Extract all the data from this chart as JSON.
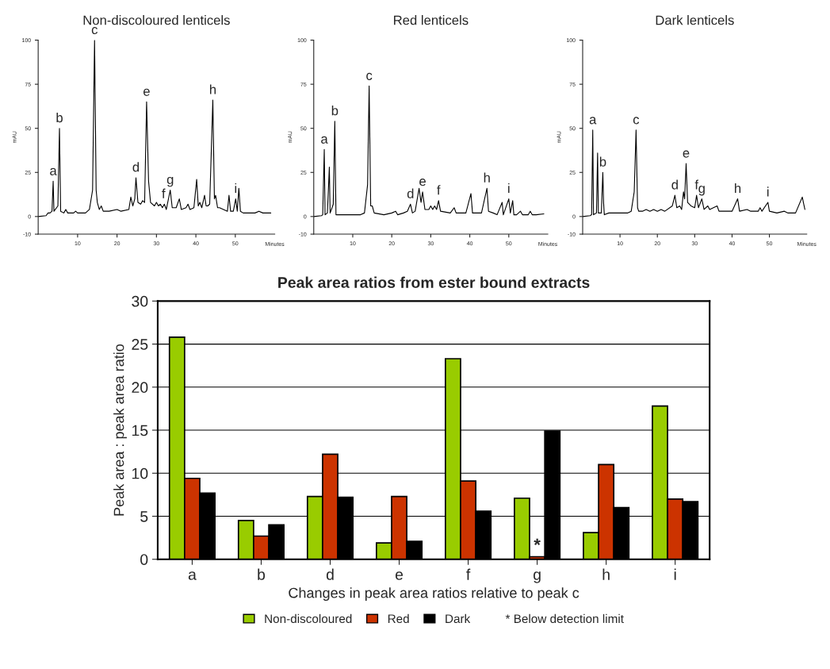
{
  "chart_data": [
    {
      "type": "line",
      "title": "Non-discoloured lenticels",
      "xlabel": "Minutes",
      "ylabel": "mAU",
      "xlim": [
        0,
        60
      ],
      "ylim": [
        -10,
        100
      ],
      "xticks": [
        10,
        20,
        30,
        40,
        50
      ],
      "yticks": [
        -10,
        0,
        25,
        50,
        75,
        100
      ],
      "grid": false,
      "marker": "none",
      "line_style": "solid",
      "series": [
        {
          "color": "#000000",
          "x": [
            0,
            2,
            2.5,
            3,
            3.5,
            3.8,
            4.0,
            5,
            5.4,
            5.7,
            6.5,
            7,
            7.5,
            9,
            9.5,
            10,
            11,
            12,
            13,
            13.8,
            14.3,
            14.7,
            15,
            15.5,
            16,
            16.5,
            18,
            20,
            21,
            23,
            23.5,
            24,
            24.5,
            24.8,
            25.3,
            26,
            26.5,
            27,
            27.5,
            28,
            28.5,
            29.5,
            30,
            30.5,
            31,
            31.5,
            32,
            32.5,
            33.5,
            34,
            35,
            35.8,
            36.3,
            37.5,
            38,
            38.5,
            39.5,
            40.2,
            40.6,
            41,
            41.5,
            42.2,
            42.6,
            43,
            43.5,
            44.3,
            44.7,
            45,
            45.5,
            46,
            47,
            48,
            48.4,
            48.8,
            49.5,
            50.1,
            50.5,
            50.9,
            51.3,
            52,
            53,
            55,
            56,
            57,
            59
          ],
          "values": [
            0,
            0.5,
            2,
            2,
            3,
            20,
            3,
            6,
            50,
            3,
            2,
            4,
            2,
            2,
            3,
            2,
            2,
            2,
            4,
            15,
            100,
            15,
            8,
            4,
            6,
            3,
            3,
            4,
            3,
            4,
            11,
            6,
            10,
            22,
            8,
            7,
            9,
            8,
            65,
            20,
            8,
            6,
            8,
            6,
            7,
            5,
            7,
            4,
            15,
            5,
            5,
            10,
            4,
            5,
            7,
            4,
            5,
            21,
            6,
            8,
            5,
            12,
            6,
            6,
            7,
            66,
            10,
            12,
            5,
            5,
            4,
            3,
            12,
            3,
            3,
            10,
            3,
            16,
            3,
            2,
            2,
            2,
            3,
            2,
            2
          ]
        }
      ],
      "annotations": [
        {
          "text": "a",
          "x": 3.8,
          "y": 20
        },
        {
          "text": "b",
          "x": 5.4,
          "y": 50
        },
        {
          "text": "c",
          "x": 14.3,
          "y": 100
        },
        {
          "text": "d",
          "x": 24.8,
          "y": 22
        },
        {
          "text": "e",
          "x": 27.5,
          "y": 65
        },
        {
          "text": "f",
          "x": 31.8,
          "y": 7
        },
        {
          "text": "g",
          "x": 33.5,
          "y": 15
        },
        {
          "text": "h",
          "x": 44.3,
          "y": 66
        },
        {
          "text": "i",
          "x": 50.1,
          "y": 10
        }
      ]
    },
    {
      "type": "line",
      "title": "Red lenticels",
      "xlabel": "Minutes",
      "ylabel": "mAU",
      "xlim": [
        0,
        60
      ],
      "ylim": [
        -10,
        100
      ],
      "xticks": [
        10,
        20,
        30,
        40,
        50
      ],
      "yticks": [
        -10,
        0,
        25,
        50,
        75,
        100
      ],
      "grid": false,
      "marker": "none",
      "line_style": "solid",
      "series": [
        {
          "color": "#000000",
          "x": [
            0,
            2,
            2.3,
            2.7,
            2.9,
            3.5,
            4,
            4.2,
            4.7,
            5,
            5.4,
            5.7,
            7,
            10,
            12,
            13,
            13.8,
            14.2,
            14.6,
            15,
            15.5,
            18,
            20,
            21,
            21.5,
            23,
            24,
            24.8,
            25.3,
            26,
            27,
            27.5,
            27.9,
            28.5,
            29.5,
            30,
            30.5,
            31,
            31.5,
            32,
            32.5,
            35,
            36,
            36.5,
            39,
            40.3,
            40.7,
            43,
            44.4,
            44.8,
            46,
            47,
            48.3,
            48.6,
            50,
            50.4,
            51,
            51.3,
            52,
            53,
            53.5,
            55,
            55.5,
            56,
            57,
            59
          ],
          "values": [
            0,
            0.5,
            1,
            38,
            1,
            2,
            28,
            2,
            5,
            7,
            54,
            1,
            1,
            1,
            1,
            2,
            18,
            74,
            6,
            6,
            2,
            1,
            2,
            3,
            1,
            2,
            3,
            7,
            2,
            3,
            16,
            8,
            14,
            4,
            4,
            6,
            4,
            6,
            4,
            9,
            3,
            2,
            5,
            2,
            2,
            13,
            2,
            2,
            16,
            3,
            2,
            1,
            8,
            1,
            10,
            2,
            9,
            1,
            1,
            3,
            1,
            1,
            3,
            1,
            1,
            1.5
          ]
        }
      ],
      "annotations": [
        {
          "text": "a",
          "x": 2.7,
          "y": 38
        },
        {
          "text": "b",
          "x": 5.4,
          "y": 54
        },
        {
          "text": "c",
          "x": 14.2,
          "y": 74
        },
        {
          "text": "d",
          "x": 24.8,
          "y": 7
        },
        {
          "text": "e",
          "x": 27.9,
          "y": 14
        },
        {
          "text": "f",
          "x": 32,
          "y": 9
        },
        {
          "text": "h",
          "x": 44.4,
          "y": 16
        },
        {
          "text": "i",
          "x": 50,
          "y": 10
        }
      ]
    },
    {
      "type": "line",
      "title": "Dark lenticels",
      "xlabel": "Minutes",
      "ylabel": "mAU",
      "xlim": [
        0,
        60
      ],
      "ylim": [
        -10,
        100
      ],
      "xticks": [
        10,
        20,
        30,
        40,
        50
      ],
      "yticks": [
        -10,
        0,
        25,
        50,
        75,
        100
      ],
      "grid": false,
      "marker": "none",
      "line_style": "solid",
      "series": [
        {
          "color": "#000000",
          "x": [
            0,
            2,
            2.4,
            2.7,
            2.9,
            3.7,
            4,
            4.2,
            5,
            5.4,
            5.6,
            5.8,
            7,
            9,
            10,
            12,
            13,
            13.8,
            14.3,
            14.7,
            15,
            16,
            17,
            18,
            19,
            20,
            21,
            22,
            24,
            24.7,
            25.2,
            26,
            26.5,
            27,
            27.3,
            27.7,
            28.1,
            29,
            30,
            30.5,
            31,
            31.9,
            32.5,
            33.5,
            34,
            35,
            36,
            36.5,
            38,
            40,
            41.5,
            42,
            44,
            45,
            47,
            47.5,
            48,
            49.6,
            50,
            52,
            54,
            55,
            57,
            58.8,
            59.2,
            59.5
          ],
          "values": [
            0,
            0.5,
            1,
            49,
            1,
            2,
            36,
            2,
            2,
            25,
            8,
            1,
            2,
            2,
            2,
            2,
            3,
            14,
            49,
            5,
            3,
            3,
            4,
            3,
            4,
            3,
            4,
            3,
            6,
            12,
            5,
            6,
            4,
            14,
            10,
            30,
            8,
            6,
            5,
            12,
            5,
            10,
            4,
            6,
            4,
            5,
            6,
            3,
            3,
            3,
            10,
            3,
            4,
            3,
            3,
            5,
            3,
            8,
            3,
            2,
            3,
            2,
            2,
            11,
            7,
            4
          ]
        }
      ],
      "annotations": [
        {
          "text": "a",
          "x": 2.7,
          "y": 49
        },
        {
          "text": "b",
          "x": 5.4,
          "y": 25
        },
        {
          "text": "c",
          "x": 14.3,
          "y": 49
        },
        {
          "text": "d",
          "x": 24.7,
          "y": 12
        },
        {
          "text": "e",
          "x": 27.7,
          "y": 30
        },
        {
          "text": "f",
          "x": 30.5,
          "y": 12
        },
        {
          "text": "g",
          "x": 31.9,
          "y": 10
        },
        {
          "text": "h",
          "x": 41.5,
          "y": 10
        },
        {
          "text": "i",
          "x": 49.6,
          "y": 8
        }
      ]
    },
    {
      "type": "bar",
      "title": "Peak area ratios from ester bound extracts",
      "xlabel": "Changes in peak area ratios relative to peak c",
      "ylabel": "Peak area : peak area ratio",
      "categories": [
        "a",
        "b",
        "d",
        "e",
        "f",
        "g",
        "h",
        "i"
      ],
      "ylim": [
        0,
        30
      ],
      "yticks": [
        0,
        5,
        10,
        15,
        20,
        25,
        30
      ],
      "grid": "y",
      "legend": "bottom",
      "series": [
        {
          "name": "Non-discoloured",
          "color": "#99cc00",
          "values": [
            25.8,
            4.5,
            7.3,
            1.9,
            23.3,
            7.1,
            3.1,
            17.8
          ]
        },
        {
          "name": "Red",
          "color": "#cc3300",
          "values": [
            9.4,
            2.7,
            12.2,
            7.3,
            9.1,
            0.3,
            11.0,
            7.0
          ]
        },
        {
          "name": "Dark",
          "color": "#000000",
          "values": [
            7.7,
            4.0,
            7.2,
            2.1,
            5.6,
            14.9,
            6.0,
            6.7
          ]
        }
      ],
      "annotations": [
        {
          "text": "*",
          "x": "g",
          "y": 0.3
        },
        "* Below detection limit"
      ]
    }
  ]
}
